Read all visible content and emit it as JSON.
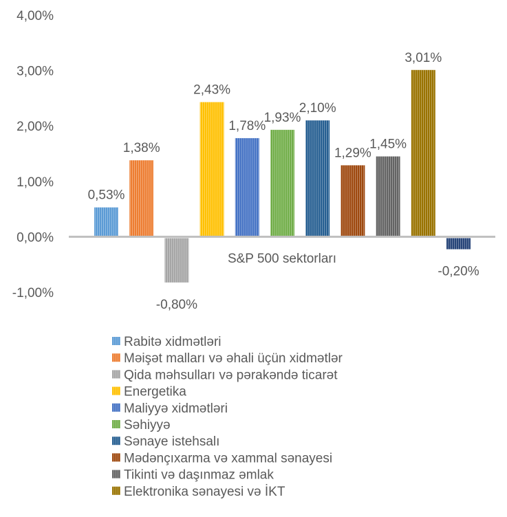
{
  "chart_data": {
    "type": "bar",
    "title": "",
    "xlabel": "",
    "ylabel": "",
    "categories": [
      "S&P 500 sektorları"
    ],
    "ylim": [
      -1,
      4
    ],
    "yticks": [
      -1,
      0,
      1,
      2,
      3,
      4
    ],
    "ytick_labels": [
      "-1,00%",
      "0,00%",
      "1,00%",
      "2,00%",
      "3,00%",
      "4,00%"
    ],
    "grid": false,
    "legend_position": "bottom",
    "series": [
      {
        "name": "Rabitə xidmətləri",
        "value": 0.53,
        "label": "0,53%",
        "color": "#5b9bd5"
      },
      {
        "name": "Məişət malları və əhali üçün xidmətlər",
        "value": 1.38,
        "label": "1,38%",
        "color": "#ed7d31"
      },
      {
        "name": "Qida məhsulları və pərakəndə ticarət",
        "value": -0.8,
        "label": "-0,80%",
        "color": "#a5a5a5"
      },
      {
        "name": "Energetika",
        "value": 2.43,
        "label": "2,43%",
        "color": "#ffc000"
      },
      {
        "name": "Maliyyə xidmətləri",
        "value": 1.78,
        "label": "1,78%",
        "color": "#4472c4"
      },
      {
        "name": "Səhiyyə",
        "value": 1.93,
        "label": "1,93%",
        "color": "#70ad47"
      },
      {
        "name": "Sənaye istehsalı",
        "value": 2.1,
        "label": "2,10%",
        "color": "#255e91"
      },
      {
        "name": "Mədənçıxarma və xammal sənayesi",
        "value": 1.29,
        "label": "1,29%",
        "color": "#9e480e"
      },
      {
        "name": "Tikinti və daşınmaz əmlak",
        "value": 1.45,
        "label": "1,45%",
        "color": "#636363"
      },
      {
        "name": "Elektronika sənayesi və İKT",
        "value": 3.01,
        "label": "3,01%",
        "color": "#997300"
      },
      {
        "name": "",
        "value": -0.2,
        "label": "-0,20%",
        "color": "#264478"
      }
    ]
  }
}
